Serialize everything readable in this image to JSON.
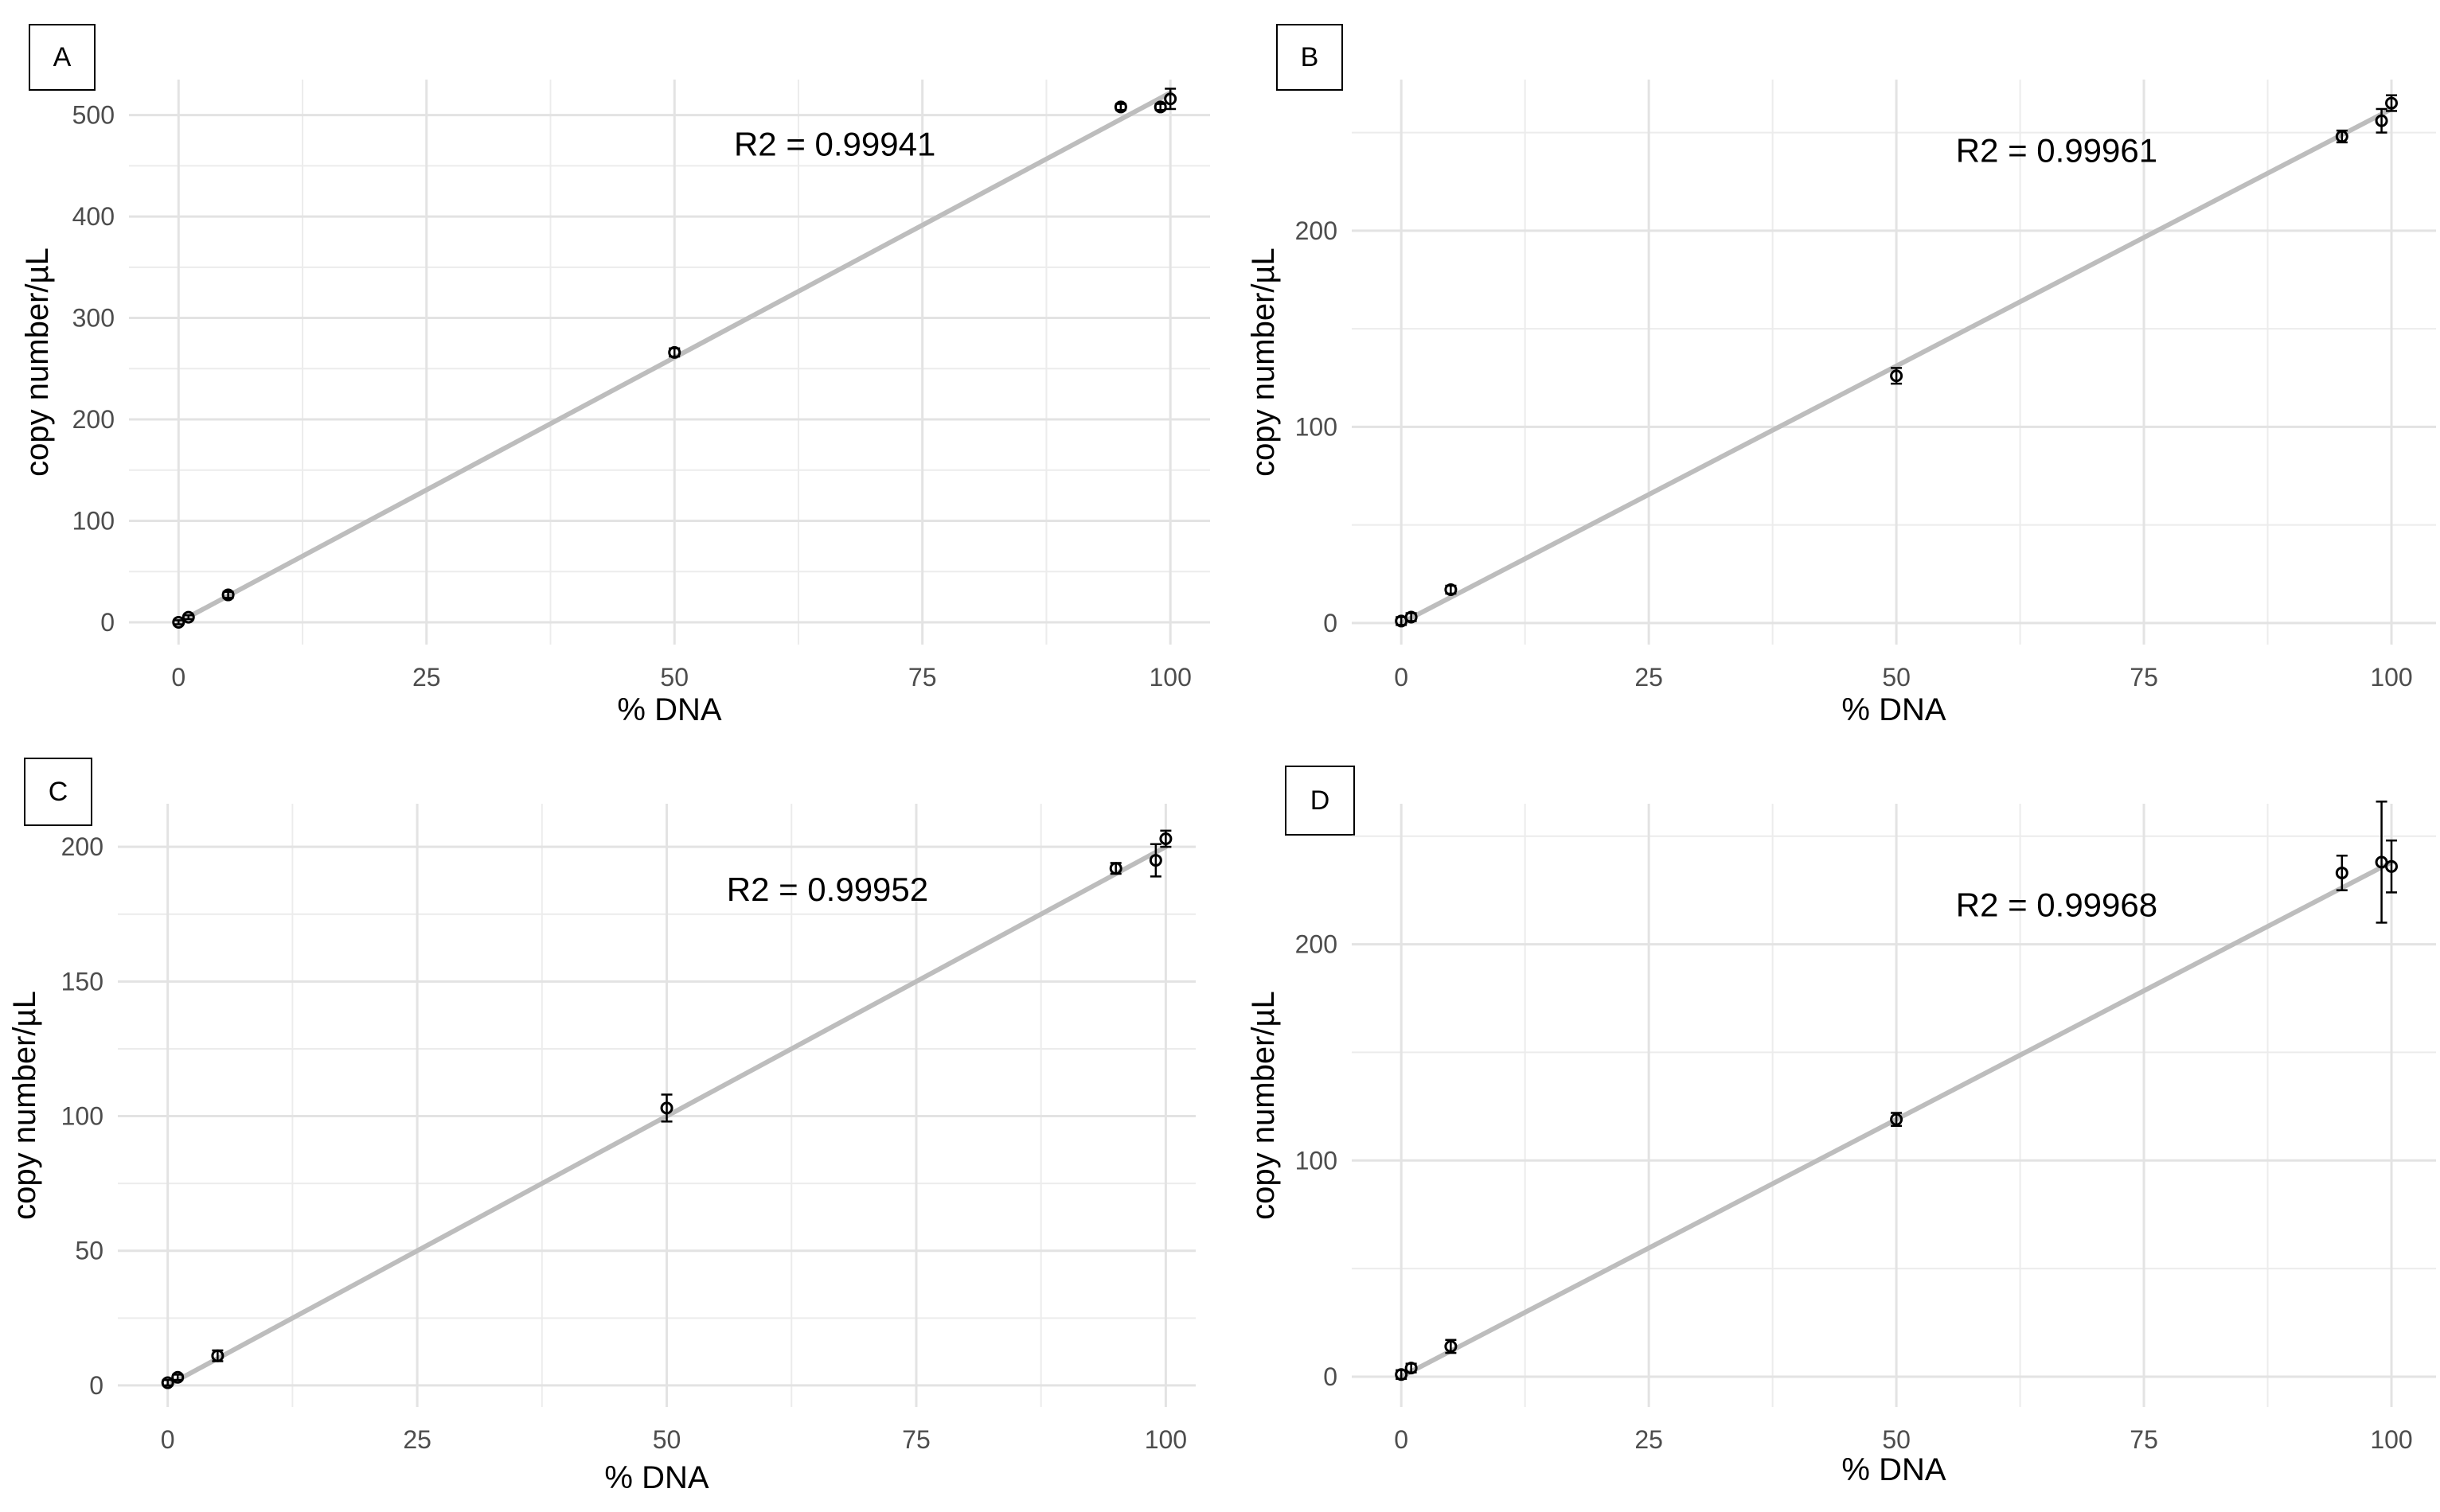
{
  "figure": {
    "panels": [
      {
        "label": "A"
      },
      {
        "label": "B"
      },
      {
        "label": "C"
      },
      {
        "label": "D"
      }
    ]
  },
  "chart_data": [
    {
      "panel": "A",
      "type": "scatter",
      "xlabel": "% DNA",
      "ylabel": "copy number/µL",
      "xlim": [
        -5,
        104
      ],
      "ylim": [
        -22,
        535
      ],
      "xticks": [
        0,
        25,
        50,
        75,
        100
      ],
      "yticks": [
        0,
        100,
        200,
        300,
        400,
        500
      ],
      "grid": true,
      "points": [
        {
          "x": 0,
          "y": 0,
          "err": 2
        },
        {
          "x": 1,
          "y": 5,
          "err": 2
        },
        {
          "x": 5,
          "y": 27,
          "err": 3
        },
        {
          "x": 50,
          "y": 266,
          "err": 4
        },
        {
          "x": 95,
          "y": 508,
          "err": 3
        },
        {
          "x": 99,
          "y": 508,
          "err": 3
        },
        {
          "x": 100,
          "y": 516,
          "err": 10
        }
      ],
      "fit": {
        "x0": 0,
        "y0": 0,
        "x1": 100,
        "y1": 522
      },
      "annotation": {
        "text": "R2 = 0.99941",
        "x": 56,
        "y": 460
      }
    },
    {
      "panel": "B",
      "type": "scatter",
      "xlabel": "% DNA",
      "ylabel": "copy number/µL",
      "xlim": [
        -5,
        104.5
      ],
      "ylim": [
        -11,
        277
      ],
      "xticks": [
        0,
        25,
        50,
        75,
        100
      ],
      "yticks": [
        0,
        100,
        200
      ],
      "grid": true,
      "points": [
        {
          "x": 0,
          "y": 1,
          "err": 2
        },
        {
          "x": 1,
          "y": 3,
          "err": 2
        },
        {
          "x": 5,
          "y": 17,
          "err": 2
        },
        {
          "x": 50,
          "y": 126,
          "err": 4
        },
        {
          "x": 95,
          "y": 248,
          "err": 3
        },
        {
          "x": 99,
          "y": 256,
          "err": 6
        },
        {
          "x": 100,
          "y": 265,
          "err": 4
        }
      ],
      "fit": {
        "x0": 0,
        "y0": 0,
        "x1": 100,
        "y1": 262
      },
      "annotation": {
        "text": "R2 = 0.99961",
        "x": 56,
        "y": 235
      }
    },
    {
      "panel": "C",
      "type": "scatter",
      "xlabel": "% DNA",
      "ylabel": "copy number/µL",
      "xlim": [
        -5,
        103
      ],
      "ylim": [
        -8,
        216
      ],
      "xticks": [
        0,
        25,
        50,
        75,
        100
      ],
      "yticks": [
        0,
        50,
        100,
        150,
        200
      ],
      "grid": true,
      "points": [
        {
          "x": 0,
          "y": 1,
          "err": 1
        },
        {
          "x": 1,
          "y": 3,
          "err": 1
        },
        {
          "x": 5,
          "y": 11,
          "err": 2
        },
        {
          "x": 50,
          "y": 103,
          "err": 5
        },
        {
          "x": 95,
          "y": 192,
          "err": 2
        },
        {
          "x": 99,
          "y": 195,
          "err": 6
        },
        {
          "x": 100,
          "y": 203,
          "err": 3
        }
      ],
      "fit": {
        "x0": 0,
        "y0": 0,
        "x1": 100,
        "y1": 200
      },
      "annotation": {
        "text": "R2 = 0.99952",
        "x": 56,
        "y": 180
      }
    },
    {
      "panel": "D",
      "type": "scatter",
      "xlabel": "% DNA",
      "ylabel": "copy number/µL",
      "xlim": [
        -5,
        104.5
      ],
      "ylim": [
        -14,
        265
      ],
      "xticks": [
        0,
        25,
        50,
        75,
        100
      ],
      "yticks": [
        0,
        100,
        200
      ],
      "grid": true,
      "points": [
        {
          "x": 0,
          "y": 1,
          "err": 2
        },
        {
          "x": 1,
          "y": 4,
          "err": 2
        },
        {
          "x": 5,
          "y": 14,
          "err": 3
        },
        {
          "x": 50,
          "y": 119,
          "err": 3
        },
        {
          "x": 95,
          "y": 233,
          "err": 8
        },
        {
          "x": 99,
          "y": 238,
          "err": 28
        },
        {
          "x": 100,
          "y": 236,
          "err": 12
        }
      ],
      "fit": {
        "x0": 0,
        "y0": 0,
        "x1": 100,
        "y1": 238
      },
      "annotation": {
        "text": "R2 = 0.99968",
        "x": 56,
        "y": 213
      }
    }
  ]
}
